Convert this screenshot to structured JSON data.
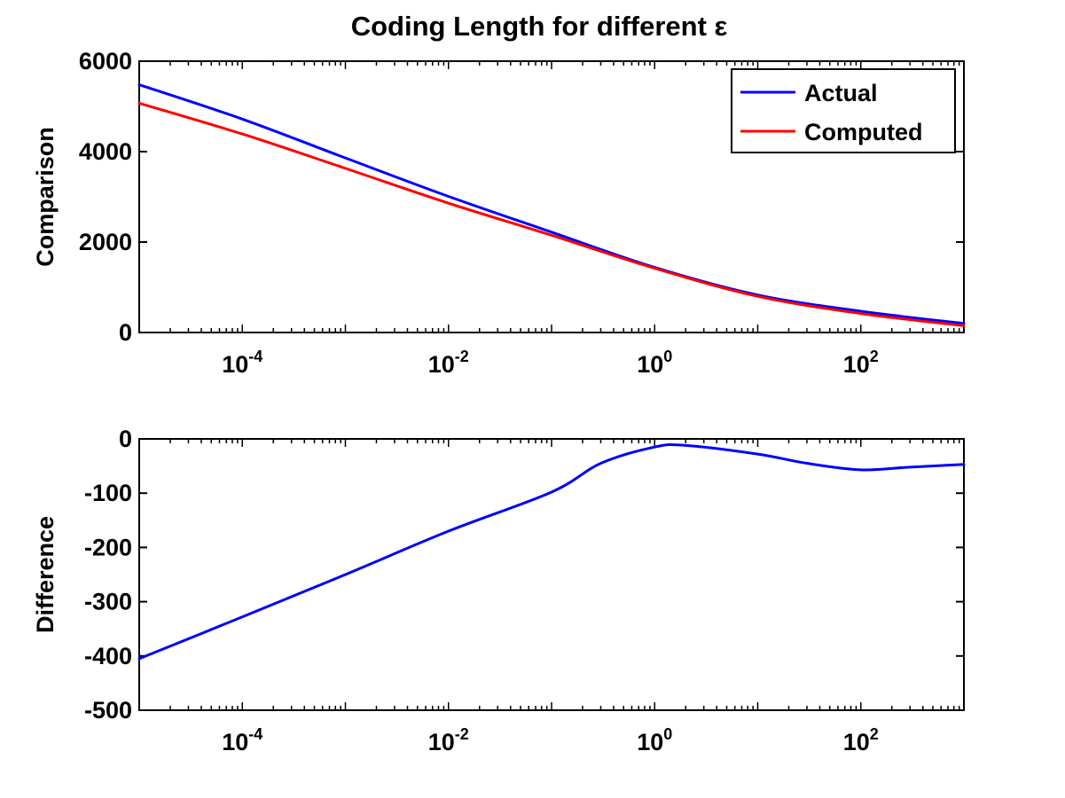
{
  "figure": {
    "title": "Coding Length for different ε"
  },
  "chart_data": [
    {
      "type": "line",
      "name": "top",
      "title": "Coding Length for different ε",
      "xlabel": "",
      "ylabel": "Comparison",
      "xscale": "log",
      "xlim": [
        1e-05,
        1000
      ],
      "ylim": [
        0,
        6000
      ],
      "xticks": [
        {
          "base": "10",
          "exp": "-4",
          "value": 0.0001
        },
        {
          "base": "10",
          "exp": "-2",
          "value": 0.01
        },
        {
          "base": "10",
          "exp": "0",
          "value": 1
        },
        {
          "base": "10",
          "exp": "2",
          "value": 100
        }
      ],
      "yticks": [
        "0",
        "2000",
        "4000",
        "6000"
      ],
      "grid": false,
      "legend": "top-right",
      "series": [
        {
          "name": "Actual",
          "color": "#0000ff",
          "x": [
            1e-05,
            0.0001,
            0.001,
            0.01,
            0.1,
            1,
            10,
            100,
            1000
          ],
          "y": [
            5480,
            4720,
            3860,
            3010,
            2220,
            1440,
            830,
            470,
            200
          ]
        },
        {
          "name": "Computed",
          "color": "#ff0000",
          "x": [
            1e-05,
            0.0001,
            0.001,
            0.01,
            0.1,
            1,
            10,
            100,
            1000
          ],
          "y": [
            5070,
            4390,
            3630,
            2860,
            2150,
            1420,
            800,
            420,
            150
          ]
        }
      ]
    },
    {
      "type": "line",
      "name": "bottom",
      "title": "",
      "xlabel": "",
      "ylabel": "Difference",
      "xscale": "log",
      "xlim": [
        1e-05,
        1000
      ],
      "ylim": [
        -500,
        0
      ],
      "xticks": [
        {
          "base": "10",
          "exp": "-4",
          "value": 0.0001
        },
        {
          "base": "10",
          "exp": "-2",
          "value": 0.01
        },
        {
          "base": "10",
          "exp": "0",
          "value": 1
        },
        {
          "base": "10",
          "exp": "2",
          "value": 100
        }
      ],
      "yticks": [
        "0",
        "-100",
        "-200",
        "-300",
        "-400",
        "-500"
      ],
      "grid": false,
      "legend": "none",
      "series": [
        {
          "name": "",
          "color": "#0000ff",
          "x": [
            1e-05,
            0.0001,
            0.001,
            0.01,
            0.1,
            0.3,
            1,
            2,
            10,
            30,
            100,
            300,
            1000
          ],
          "y": [
            -405,
            -328,
            -250,
            -170,
            -98,
            -45,
            -15,
            -12,
            -28,
            -45,
            -57,
            -52,
            -47
          ]
        }
      ]
    }
  ]
}
